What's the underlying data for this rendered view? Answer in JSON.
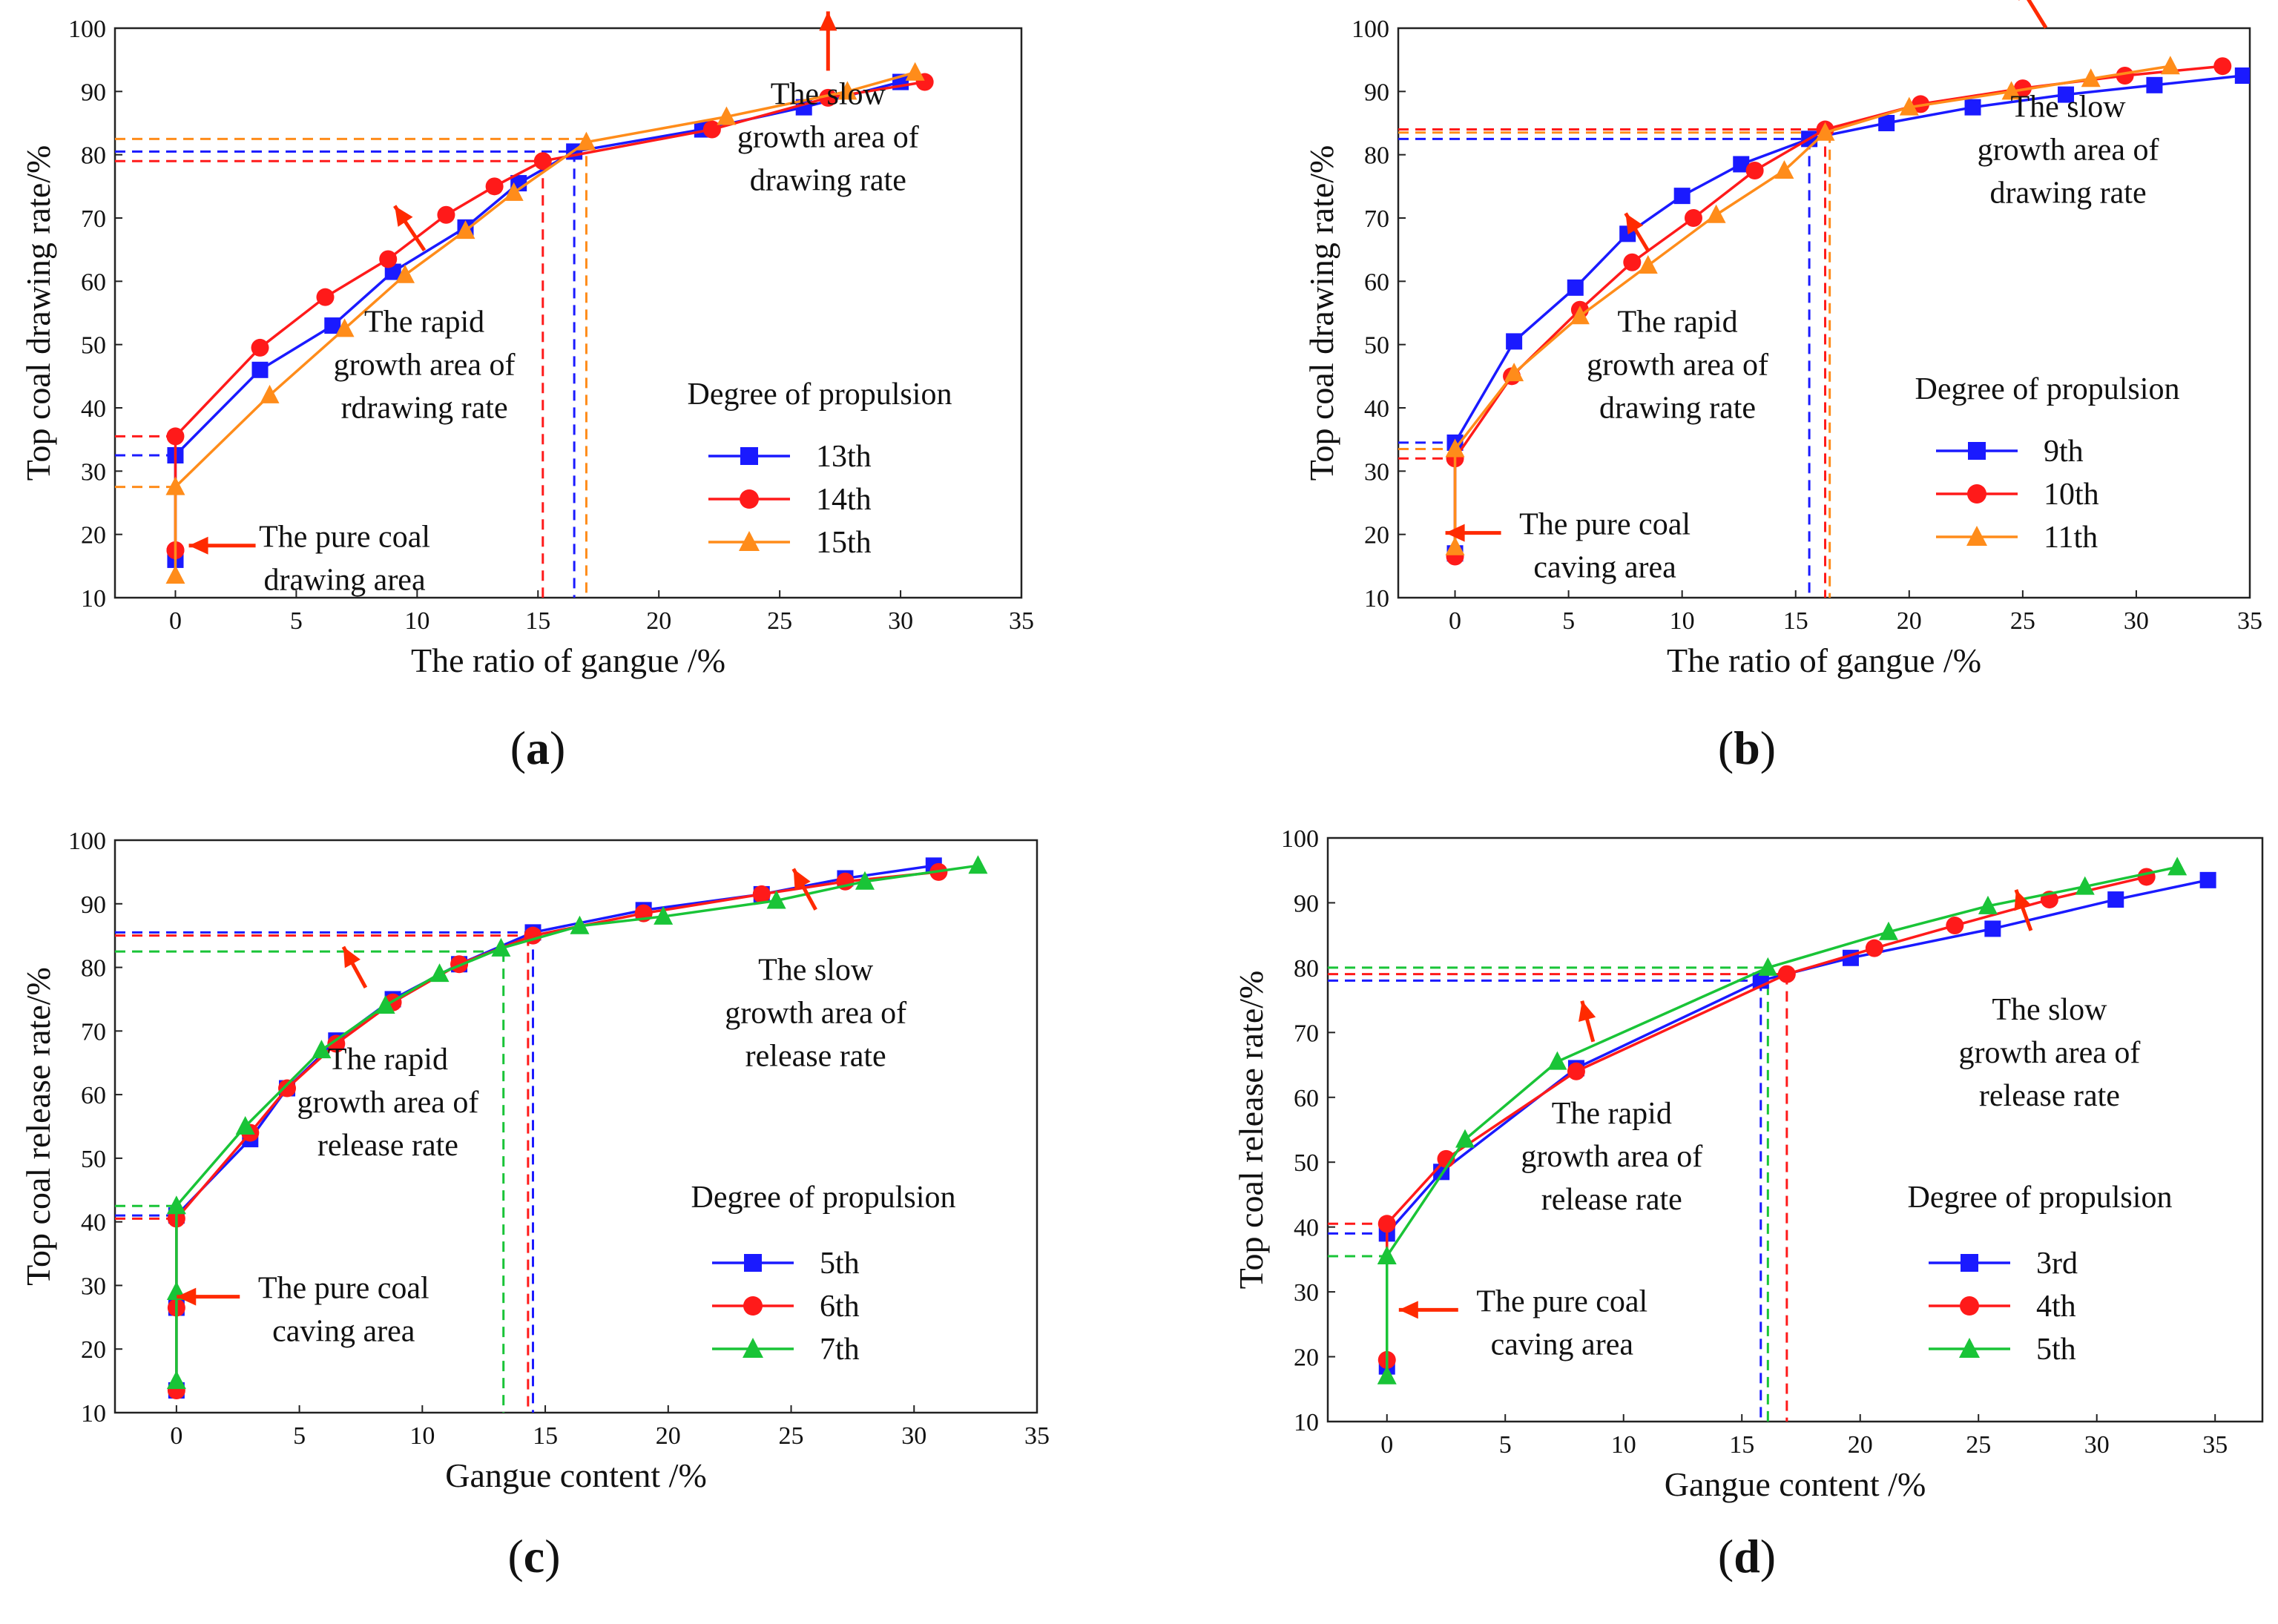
{
  "chart_data": [
    {
      "id": "a",
      "type": "line",
      "caption_letter": "a",
      "xlabel": "The ratio of gangue /%",
      "ylabel": "Top coal drawing rate/%",
      "xlim": [
        -2.5,
        35
      ],
      "ylim": [
        10,
        100
      ],
      "xticks": [
        0,
        5,
        10,
        15,
        20,
        25,
        30,
        35
      ],
      "yticks": [
        10,
        20,
        30,
        40,
        50,
        60,
        70,
        80,
        90,
        100
      ],
      "legend_title": "Degree of propulsion",
      "series": [
        {
          "name": "13th",
          "color": "#1a1aff",
          "marker": "square",
          "x": [
            0,
            0,
            0,
            3.5,
            6.5,
            9.0,
            12.0,
            14.2,
            16.5,
            21.8,
            26.0,
            30.0
          ],
          "y": [
            16,
            16,
            32.5,
            46,
            53,
            61.5,
            68.5,
            75.5,
            80.5,
            84,
            87.5,
            91.5
          ]
        },
        {
          "name": "14th",
          "color": "#ff1a1a",
          "marker": "circle",
          "x": [
            0,
            0,
            0,
            3.5,
            6.2,
            8.8,
            11.2,
            13.2,
            15.2,
            22.2,
            27.0,
            31.0
          ],
          "y": [
            17.5,
            17.5,
            35.5,
            49.5,
            57.5,
            63.5,
            70.5,
            75,
            79,
            84,
            89,
            91.5
          ]
        },
        {
          "name": "15th",
          "color": "#ff8c1a",
          "marker": "triangle",
          "x": [
            0,
            0,
            3.9,
            7.0,
            9.5,
            12.0,
            14.0,
            17.0,
            22.8,
            27.8,
            30.6
          ],
          "y": [
            13.5,
            27.5,
            42,
            52.5,
            61,
            68,
            74,
            82,
            86,
            90,
            93
          ]
        }
      ],
      "ref_lines": [
        {
          "color": "#1a1aff",
          "x": 16.5,
          "y": 80.5,
          "y0": 32.5
        },
        {
          "color": "#ff1a1a",
          "x": 15.2,
          "y": 79,
          "y0": 35.5
        },
        {
          "color": "#ff8c1a",
          "x": 17.0,
          "y": 82.5,
          "y0": 27.5
        }
      ],
      "annotations": [
        {
          "lines": [
            "The slow",
            "growth area of",
            "drawing rate"
          ],
          "tx": 27,
          "ty": 88
        },
        {
          "lines": [
            "The rapid",
            "growth area of",
            "rdrawing rate"
          ],
          "tx": 10.3,
          "ty": 52
        },
        {
          "lines": [
            "The pure coal",
            "drawing area"
          ],
          "tx": 7,
          "ty": 18
        }
      ],
      "legend_entries": [
        "13th",
        "14th",
        "15th"
      ]
    },
    {
      "id": "b",
      "type": "line",
      "caption_letter": "b",
      "xlabel": "The ratio of gangue /%",
      "ylabel": "Top coal drawing rate/%",
      "xlim": [
        -2.5,
        35
      ],
      "ylim": [
        10,
        100
      ],
      "xticks": [
        0,
        5,
        10,
        15,
        20,
        25,
        30,
        35
      ],
      "yticks": [
        10,
        20,
        30,
        40,
        50,
        60,
        70,
        80,
        90,
        100
      ],
      "legend_title": "Degree of propulsion",
      "series": [
        {
          "name": "9th",
          "color": "#1a1aff",
          "marker": "square",
          "x": [
            0,
            0,
            2.6,
            5.3,
            7.6,
            10.0,
            12.6,
            15.6,
            19.0,
            22.8,
            26.9,
            30.8,
            34.7
          ],
          "y": [
            17,
            34.5,
            50.5,
            59,
            67.5,
            73.5,
            78.5,
            82.5,
            85,
            87.5,
            89.5,
            91,
            92.5
          ]
        },
        {
          "name": "10th",
          "color": "#ff1a1a",
          "marker": "circle",
          "x": [
            0,
            0,
            2.5,
            5.5,
            7.8,
            10.5,
            13.2,
            16.3,
            20.5,
            25.0,
            29.5,
            33.8
          ],
          "y": [
            16.5,
            32,
            45,
            55.5,
            63,
            70,
            77.5,
            84,
            88,
            90.5,
            92.5,
            94
          ]
        },
        {
          "name": "11th",
          "color": "#ff8c1a",
          "marker": "triangle",
          "x": [
            0,
            0,
            2.6,
            5.5,
            8.5,
            11.5,
            14.5,
            16.3,
            20.0,
            24.5,
            28.0,
            31.5
          ],
          "y": [
            18,
            33.5,
            45.5,
            54.5,
            62.5,
            70.5,
            77.5,
            83.5,
            87.5,
            90,
            92,
            94
          ]
        }
      ],
      "ref_lines": [
        {
          "color": "#1a1aff",
          "x": 15.6,
          "y": 82.5,
          "y0": 34.5
        },
        {
          "color": "#ff1a1a",
          "x": 16.3,
          "y": 84,
          "y0": 32
        },
        {
          "color": "#ff8c1a",
          "x": 16.5,
          "y": 83.5,
          "y0": 33.5
        }
      ],
      "annotations": [
        {
          "lines": [
            "The slow",
            "growth area of",
            "drawing rate"
          ],
          "tx": 27,
          "ty": 86
        },
        {
          "lines": [
            "The rapid",
            "growth area of",
            "drawing rate"
          ],
          "tx": 9.8,
          "ty": 52
        },
        {
          "lines": [
            "The pure coal",
            "caving area"
          ],
          "tx": 6.6,
          "ty": 20
        }
      ],
      "legend_entries": [
        "9th",
        "10th",
        "11th"
      ]
    },
    {
      "id": "c",
      "type": "line",
      "caption_letter": "c",
      "xlabel": "Gangue content /%",
      "ylabel": "Top coal release rate/%",
      "xlim": [
        -2.5,
        35
      ],
      "ylim": [
        10,
        100
      ],
      "xticks": [
        0,
        5,
        10,
        15,
        20,
        25,
        30,
        35
      ],
      "yticks": [
        10,
        20,
        30,
        40,
        50,
        60,
        70,
        80,
        90,
        100
      ],
      "legend_title": "Degree of propulsion",
      "series": [
        {
          "name": "5th",
          "color": "#1a1aff",
          "marker": "square",
          "x": [
            0,
            0,
            0,
            3.0,
            4.5,
            6.5,
            8.8,
            11.5,
            14.5,
            19.0,
            23.8,
            27.2,
            30.8
          ],
          "y": [
            13.5,
            26.5,
            41,
            53,
            61,
            68.5,
            75,
            80.5,
            85.5,
            89,
            91.5,
            94,
            96
          ]
        },
        {
          "name": "6th",
          "color": "#ff1a1a",
          "marker": "circle",
          "x": [
            0,
            0,
            0,
            3.0,
            4.5,
            6.5,
            8.8,
            11.5,
            14.5,
            19.0,
            23.8,
            27.2,
            31.0
          ],
          "y": [
            13.5,
            26.5,
            40.5,
            54,
            61,
            68,
            74.5,
            80.5,
            85,
            88.5,
            91.5,
            93.5,
            95
          ]
        },
        {
          "name": "7th",
          "color": "#19c437",
          "marker": "triangle",
          "x": [
            0,
            0,
            0,
            2.8,
            5.9,
            8.5,
            10.7,
            13.2,
            16.4,
            19.8,
            24.4,
            28.0,
            32.6
          ],
          "y": [
            15,
            29,
            42.5,
            55,
            67,
            74,
            79,
            83,
            86.5,
            88,
            90.5,
            93.5,
            96
          ]
        }
      ],
      "ref_lines": [
        {
          "color": "#1a1aff",
          "x": 14.5,
          "y": 85.5,
          "y0": 41
        },
        {
          "color": "#ff1a1a",
          "x": 14.3,
          "y": 85,
          "y0": 40.5
        },
        {
          "color": "#19c437",
          "x": 13.3,
          "y": 82.5,
          "y0": 42.5
        }
      ],
      "annotations": [
        {
          "lines": [
            "The slow",
            "growth area of",
            "release rate"
          ],
          "tx": 26,
          "ty": 78
        },
        {
          "lines": [
            "The rapid",
            "growth area of",
            "release rate"
          ],
          "tx": 8.6,
          "ty": 64
        },
        {
          "lines": [
            "The pure coal",
            "caving area"
          ],
          "tx": 6.8,
          "ty": 28
        }
      ],
      "legend_entries": [
        "5th",
        "6th",
        "7th"
      ]
    },
    {
      "id": "d",
      "type": "line",
      "caption_letter": "d",
      "xlabel": "Gangue content /%",
      "ylabel": "Top coal release rate/%",
      "xlim": [
        -2.5,
        37
      ],
      "ylim": [
        10,
        100
      ],
      "xticks": [
        0,
        5,
        10,
        15,
        20,
        25,
        30,
        35
      ],
      "yticks": [
        10,
        20,
        30,
        40,
        50,
        60,
        70,
        80,
        90,
        100
      ],
      "legend_title": "Degree of propulsion",
      "series": [
        {
          "name": "3rd",
          "color": "#1a1aff",
          "marker": "square",
          "x": [
            0,
            0,
            2.3,
            8.0,
            15.8,
            19.6,
            25.6,
            30.8,
            34.7
          ],
          "y": [
            18.5,
            39,
            48.5,
            64.5,
            78,
            81.5,
            86,
            90.5,
            93.5
          ]
        },
        {
          "name": "4th",
          "color": "#ff1a1a",
          "marker": "circle",
          "x": [
            0,
            0,
            2.5,
            8.0,
            16.9,
            20.6,
            24.0,
            28.0,
            32.1
          ],
          "y": [
            19.5,
            40.5,
            50.5,
            64,
            79,
            83,
            86.5,
            90.5,
            94
          ]
        },
        {
          "name": "5th",
          "color": "#19c437",
          "marker": "triangle",
          "x": [
            0,
            0,
            3.3,
            7.2,
            16.1,
            21.2,
            25.4,
            29.5,
            33.4
          ],
          "y": [
            17,
            35.5,
            53.5,
            65.5,
            80,
            85.5,
            89.5,
            92.5,
            95.5
          ]
        }
      ],
      "ref_lines": [
        {
          "color": "#1a1aff",
          "x": 15.8,
          "y": 78,
          "y0": 39
        },
        {
          "color": "#ff1a1a",
          "x": 16.9,
          "y": 79,
          "y0": 40.5
        },
        {
          "color": "#19c437",
          "x": 16.1,
          "y": 80,
          "y0": 35.5
        }
      ],
      "annotations": [
        {
          "lines": [
            "The slow",
            "growth area of",
            "release rate"
          ],
          "tx": 28,
          "ty": 72
        },
        {
          "lines": [
            "The rapid",
            "growth area of",
            "release rate"
          ],
          "tx": 9.5,
          "ty": 56
        },
        {
          "lines": [
            "The pure coal",
            "caving area"
          ],
          "tx": 7.4,
          "ty": 27
        }
      ],
      "legend_entries": [
        "3rd",
        "4th",
        "5th"
      ]
    }
  ]
}
